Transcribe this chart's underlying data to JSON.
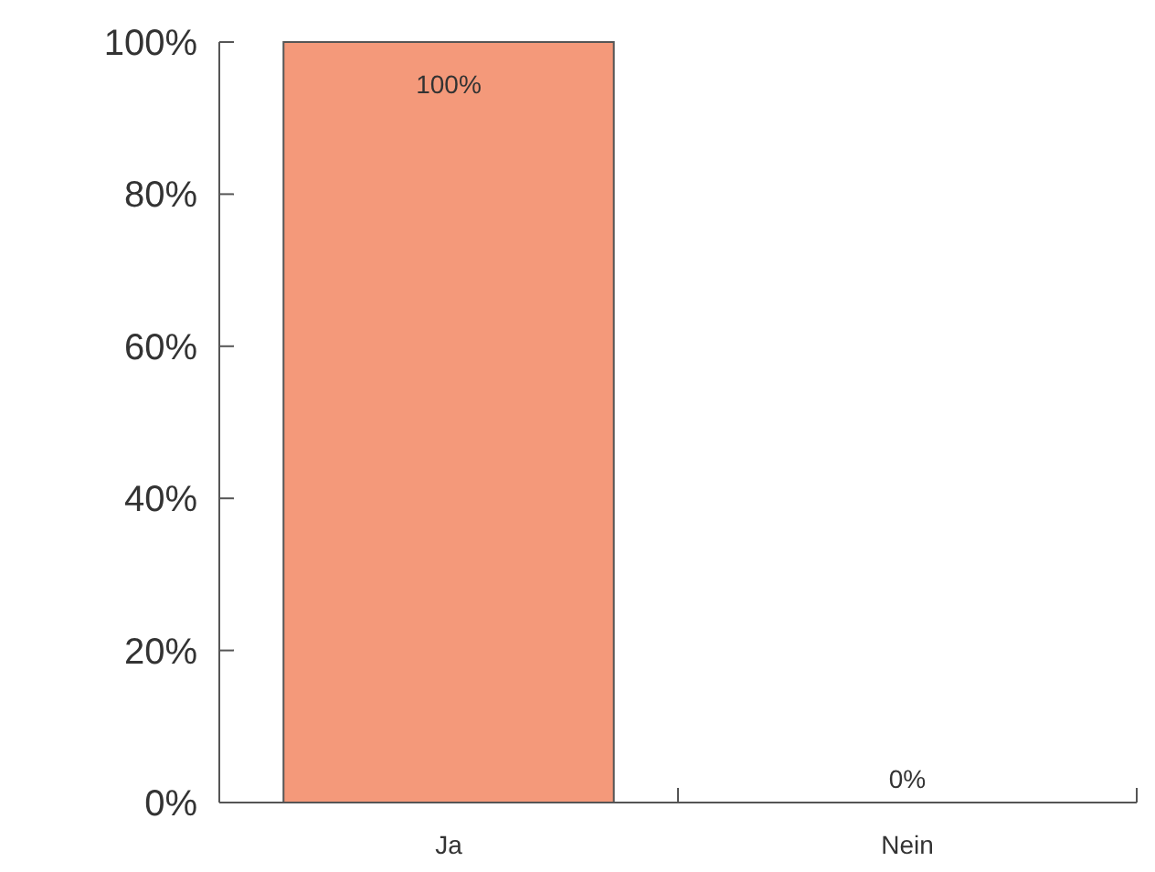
{
  "chart_data": {
    "type": "bar",
    "categories": [
      "Ja",
      "Nein"
    ],
    "values": [
      100,
      0
    ],
    "color": "#f4997a",
    "value_labels": [
      "100%",
      "0%"
    ],
    "ylim": [
      0,
      100
    ],
    "yticks": [
      {
        "value": 0,
        "label": "0%"
      },
      {
        "value": 20,
        "label": "20%"
      },
      {
        "value": 40,
        "label": "40%"
      },
      {
        "value": 60,
        "label": "60%"
      },
      {
        "value": 80,
        "label": "80%"
      },
      {
        "value": 100,
        "label": "100%"
      }
    ]
  }
}
